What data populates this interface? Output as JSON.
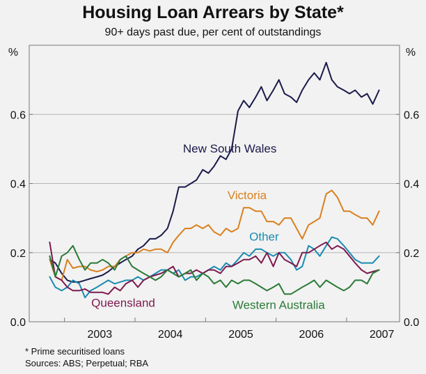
{
  "chart_data": {
    "type": "line",
    "title": "Housing Loan Arrears by State*",
    "subtitle": "90+ days past due, per cent of outstandings",
    "ylabel_left": "%",
    "ylabel_right": "%",
    "ylim": [
      0,
      0.8
    ],
    "yticks": [
      "0.0",
      "0.2",
      "0.4",
      "0.6"
    ],
    "xlim": [
      2002.5,
      2007.75
    ],
    "xtick_labels": [
      "2003",
      "2004",
      "2005",
      "2006",
      "2007"
    ],
    "grid": "horizontal",
    "footnote": "*   Prime securitised loans",
    "sources": "Sources: ABS; Perpetual; RBA",
    "series": [
      {
        "name": "New South Wales",
        "color": "#1a1a4a",
        "x": [
          2002.79,
          2002.87,
          2002.96,
          2003.04,
          2003.12,
          2003.21,
          2003.29,
          2003.37,
          2003.46,
          2003.54,
          2003.62,
          2003.71,
          2003.79,
          2003.87,
          2003.96,
          2004.04,
          2004.12,
          2004.21,
          2004.29,
          2004.37,
          2004.46,
          2004.54,
          2004.62,
          2004.71,
          2004.79,
          2004.87,
          2004.96,
          2005.04,
          2005.12,
          2005.21,
          2005.29,
          2005.37,
          2005.46,
          2005.54,
          2005.62,
          2005.71,
          2005.79,
          2005.87,
          2005.96,
          2006.04,
          2006.12,
          2006.21,
          2006.29,
          2006.37,
          2006.46,
          2006.54,
          2006.62,
          2006.71,
          2006.79,
          2006.87,
          2006.96,
          2007.04,
          2007.12,
          2007.21,
          2007.29,
          2007.37,
          2007.46
        ],
        "values": [
          0.18,
          0.17,
          0.14,
          0.12,
          0.115,
          0.115,
          0.12,
          0.125,
          0.13,
          0.135,
          0.145,
          0.16,
          0.17,
          0.18,
          0.19,
          0.21,
          0.22,
          0.24,
          0.24,
          0.25,
          0.27,
          0.32,
          0.39,
          0.39,
          0.4,
          0.41,
          0.44,
          0.43,
          0.45,
          0.48,
          0.47,
          0.5,
          0.61,
          0.64,
          0.62,
          0.65,
          0.68,
          0.64,
          0.67,
          0.7,
          0.66,
          0.65,
          0.635,
          0.67,
          0.7,
          0.72,
          0.7,
          0.75,
          0.7,
          0.68,
          0.67,
          0.66,
          0.67,
          0.65,
          0.66,
          0.63,
          0.67
        ]
      },
      {
        "name": "Victoria",
        "color": "#d9801e",
        "x": [
          2002.79,
          2002.87,
          2002.96,
          2003.04,
          2003.12,
          2003.21,
          2003.29,
          2003.37,
          2003.46,
          2003.54,
          2003.62,
          2003.71,
          2003.79,
          2003.87,
          2003.96,
          2004.04,
          2004.12,
          2004.21,
          2004.29,
          2004.37,
          2004.46,
          2004.54,
          2004.62,
          2004.71,
          2004.79,
          2004.87,
          2004.96,
          2005.04,
          2005.12,
          2005.21,
          2005.29,
          2005.37,
          2005.46,
          2005.54,
          2005.62,
          2005.71,
          2005.79,
          2005.87,
          2005.96,
          2006.04,
          2006.12,
          2006.21,
          2006.29,
          2006.37,
          2006.46,
          2006.54,
          2006.62,
          2006.71,
          2006.79,
          2006.87,
          2006.96,
          2007.04,
          2007.12,
          2007.21,
          2007.29,
          2007.37,
          2007.46
        ],
        "values": [
          0.18,
          0.13,
          0.12,
          0.18,
          0.155,
          0.16,
          0.16,
          0.15,
          0.145,
          0.15,
          0.16,
          0.16,
          0.18,
          0.19,
          0.2,
          0.2,
          0.21,
          0.205,
          0.21,
          0.21,
          0.2,
          0.23,
          0.25,
          0.27,
          0.27,
          0.28,
          0.27,
          0.28,
          0.26,
          0.25,
          0.27,
          0.26,
          0.27,
          0.33,
          0.33,
          0.32,
          0.32,
          0.29,
          0.29,
          0.28,
          0.3,
          0.3,
          0.27,
          0.24,
          0.28,
          0.29,
          0.3,
          0.37,
          0.38,
          0.36,
          0.32,
          0.32,
          0.31,
          0.3,
          0.3,
          0.28,
          0.32
        ]
      },
      {
        "name": "Other",
        "color": "#1b8bb0",
        "x": [
          2002.79,
          2002.87,
          2002.96,
          2003.04,
          2003.12,
          2003.21,
          2003.29,
          2003.37,
          2003.46,
          2003.54,
          2003.62,
          2003.71,
          2003.79,
          2003.87,
          2003.96,
          2004.04,
          2004.12,
          2004.21,
          2004.29,
          2004.37,
          2004.46,
          2004.54,
          2004.62,
          2004.71,
          2004.79,
          2004.87,
          2004.96,
          2005.04,
          2005.12,
          2005.21,
          2005.29,
          2005.37,
          2005.46,
          2005.54,
          2005.62,
          2005.71,
          2005.79,
          2005.87,
          2005.96,
          2006.04,
          2006.12,
          2006.21,
          2006.29,
          2006.37,
          2006.46,
          2006.54,
          2006.62,
          2006.71,
          2006.79,
          2006.87,
          2006.96,
          2007.04,
          2007.12,
          2007.21,
          2007.29,
          2007.37,
          2007.46
        ],
        "values": [
          0.13,
          0.1,
          0.09,
          0.1,
          0.12,
          0.11,
          0.07,
          0.09,
          0.1,
          0.11,
          0.12,
          0.11,
          0.115,
          0.12,
          0.12,
          0.13,
          0.12,
          0.13,
          0.14,
          0.15,
          0.15,
          0.14,
          0.15,
          0.12,
          0.13,
          0.13,
          0.14,
          0.15,
          0.16,
          0.15,
          0.17,
          0.16,
          0.18,
          0.2,
          0.19,
          0.21,
          0.21,
          0.2,
          0.19,
          0.2,
          0.2,
          0.18,
          0.15,
          0.16,
          0.22,
          0.21,
          0.19,
          0.22,
          0.245,
          0.24,
          0.22,
          0.2,
          0.18,
          0.17,
          0.17,
          0.17,
          0.19
        ]
      },
      {
        "name": "Queensland",
        "color": "#7c1a4e",
        "x": [
          2002.79,
          2002.87,
          2002.96,
          2003.04,
          2003.12,
          2003.21,
          2003.29,
          2003.37,
          2003.46,
          2003.54,
          2003.62,
          2003.71,
          2003.79,
          2003.87,
          2003.96,
          2004.04,
          2004.12,
          2004.21,
          2004.29,
          2004.37,
          2004.46,
          2004.54,
          2004.62,
          2004.71,
          2004.79,
          2004.87,
          2004.96,
          2005.04,
          2005.12,
          2005.21,
          2005.29,
          2005.37,
          2005.46,
          2005.54,
          2005.62,
          2005.71,
          2005.79,
          2005.87,
          2005.96,
          2006.04,
          2006.12,
          2006.21,
          2006.29,
          2006.37,
          2006.46,
          2006.54,
          2006.62,
          2006.71,
          2006.79,
          2006.87,
          2006.96,
          2007.04,
          2007.12,
          2007.21,
          2007.29,
          2007.37,
          2007.46
        ],
        "values": [
          0.23,
          0.13,
          0.12,
          0.1,
          0.09,
          0.09,
          0.095,
          0.085,
          0.085,
          0.085,
          0.08,
          0.1,
          0.09,
          0.11,
          0.12,
          0.1,
          0.12,
          0.13,
          0.135,
          0.14,
          0.15,
          0.16,
          0.13,
          0.14,
          0.14,
          0.15,
          0.14,
          0.15,
          0.15,
          0.14,
          0.16,
          0.16,
          0.17,
          0.18,
          0.18,
          0.19,
          0.17,
          0.2,
          0.16,
          0.2,
          0.18,
          0.17,
          0.16,
          0.2,
          0.2,
          0.21,
          0.22,
          0.23,
          0.21,
          0.22,
          0.21,
          0.19,
          0.17,
          0.15,
          0.14,
          0.145,
          0.15
        ]
      },
      {
        "name": "Western Australia",
        "color": "#2a7a36",
        "x": [
          2002.79,
          2002.87,
          2002.96,
          2003.04,
          2003.12,
          2003.21,
          2003.29,
          2003.37,
          2003.46,
          2003.54,
          2003.62,
          2003.71,
          2003.79,
          2003.87,
          2003.96,
          2004.04,
          2004.12,
          2004.21,
          2004.29,
          2004.37,
          2004.46,
          2004.54,
          2004.62,
          2004.71,
          2004.79,
          2004.87,
          2004.96,
          2005.04,
          2005.12,
          2005.21,
          2005.29,
          2005.37,
          2005.46,
          2005.54,
          2005.62,
          2005.71,
          2005.79,
          2005.87,
          2005.96,
          2006.04,
          2006.12,
          2006.21,
          2006.29,
          2006.37,
          2006.46,
          2006.54,
          2006.62,
          2006.71,
          2006.79,
          2006.87,
          2006.96,
          2007.04,
          2007.12,
          2007.21,
          2007.29,
          2007.37,
          2007.46
        ],
        "values": [
          0.19,
          0.13,
          0.19,
          0.2,
          0.22,
          0.18,
          0.15,
          0.17,
          0.17,
          0.18,
          0.17,
          0.15,
          0.18,
          0.19,
          0.16,
          0.15,
          0.14,
          0.13,
          0.12,
          0.13,
          0.15,
          0.14,
          0.13,
          0.14,
          0.15,
          0.12,
          0.14,
          0.13,
          0.11,
          0.12,
          0.1,
          0.12,
          0.11,
          0.12,
          0.12,
          0.11,
          0.1,
          0.09,
          0.1,
          0.11,
          0.08,
          0.08,
          0.09,
          0.1,
          0.11,
          0.12,
          0.1,
          0.12,
          0.11,
          0.1,
          0.09,
          0.1,
          0.12,
          0.12,
          0.11,
          0.14,
          0.15
        ]
      }
    ],
    "labels": [
      {
        "text": "New South Wales",
        "series": 0
      },
      {
        "text": "Victoria",
        "series": 1
      },
      {
        "text": "Other",
        "series": 2
      },
      {
        "text": "Queensland",
        "series": 3
      },
      {
        "text": "Western Australia",
        "series": 4
      }
    ]
  }
}
